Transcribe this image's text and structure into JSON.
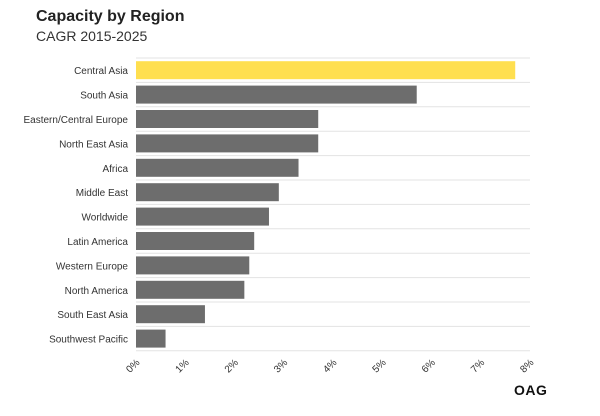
{
  "header": {
    "title": "Capacity by Region",
    "subtitle": "CAGR 2015-2025"
  },
  "logo": {
    "text": "OAG"
  },
  "colors": {
    "highlight": "#FFDF4F",
    "bar": "#6D6D6D",
    "grid": "#E3E3E3",
    "label": "#333333"
  },
  "chart_data": {
    "type": "bar",
    "orientation": "horizontal",
    "title": "Capacity by Region",
    "subtitle": "CAGR 2015-2025",
    "xlabel": "",
    "ylabel": "",
    "categories": [
      "Central Asia",
      "South Asia",
      "Eastern/Central Europe",
      "North East Asia",
      "Africa",
      "Middle East",
      "Worldwide",
      "Latin America",
      "Western Europe",
      "North America",
      "South East Asia",
      "Southwest Pacific"
    ],
    "values": [
      7.7,
      5.7,
      3.7,
      3.7,
      3.3,
      2.9,
      2.7,
      2.4,
      2.3,
      2.2,
      1.4,
      0.6
    ],
    "highlight_index": 0,
    "xlim": [
      0,
      8
    ],
    "xticks": [
      0,
      1,
      2,
      3,
      4,
      5,
      6,
      7,
      8
    ],
    "xtick_labels": [
      "0%",
      "1%",
      "2%",
      "3%",
      "4%",
      "5%",
      "6%",
      "7%",
      "8%"
    ],
    "grid": true,
    "legend": "none"
  }
}
